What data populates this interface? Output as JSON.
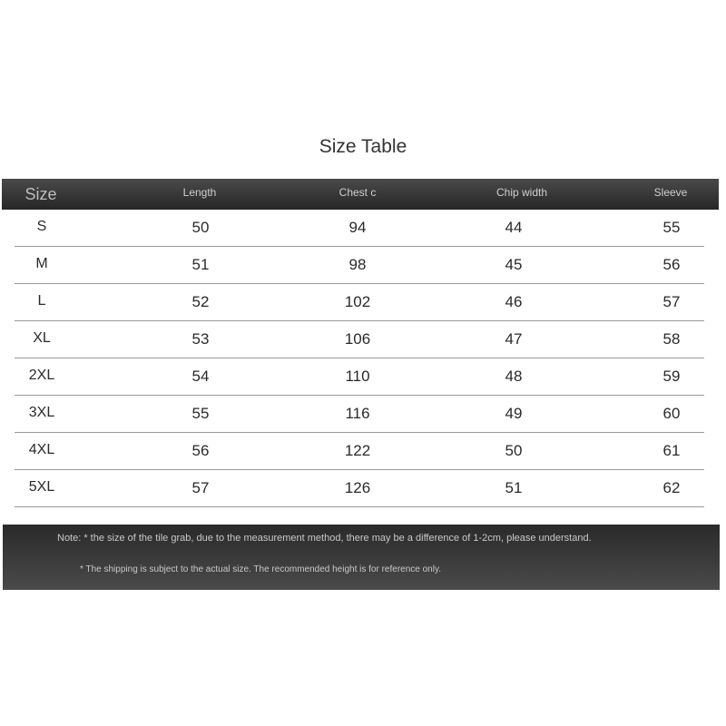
{
  "title": "Size Table",
  "columns": [
    "Size",
    "Length",
    "Chest c",
    "Chip width",
    "Sleeve"
  ],
  "rows": [
    [
      "S",
      "50",
      "94",
      "44",
      "55"
    ],
    [
      "M",
      "51",
      "98",
      "45",
      "56"
    ],
    [
      "L",
      "52",
      "102",
      "46",
      "57"
    ],
    [
      "XL",
      "53",
      "106",
      "47",
      "58"
    ],
    [
      "2XL",
      "54",
      "110",
      "48",
      "59"
    ],
    [
      "3XL",
      "55",
      "116",
      "49",
      "60"
    ],
    [
      "4XL",
      "56",
      "122",
      "50",
      "61"
    ],
    [
      "5XL",
      "57",
      "126",
      "51",
      "62"
    ]
  ],
  "notes": [
    "Note: * the size of the tile grab, due to the measurement method, there may be a difference of 1-2cm, please understand.",
    "* The shipping is subject to the actual size. The recommended height is for reference only."
  ]
}
